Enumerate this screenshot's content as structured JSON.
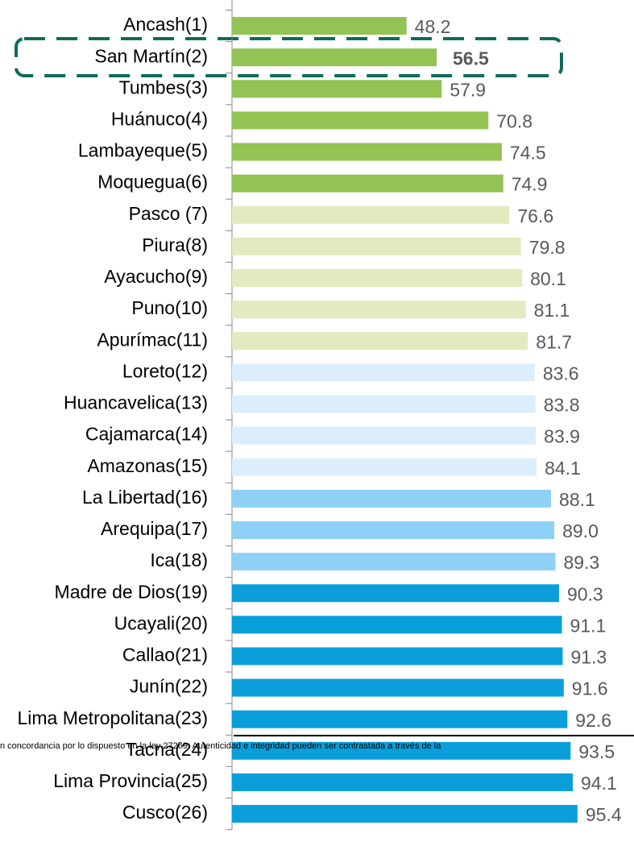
{
  "chart_data": {
    "type": "barh",
    "categories": [
      "Ancash(1)",
      "San Martín(2)",
      "Tumbes(3)",
      "Huánuco(4)",
      "Lambayeque(5)",
      "Moquegua(6)",
      "Pasco (7)",
      "Piura(8)",
      "Ayacucho(9)",
      "Puno(10)",
      "Apurímac(11)",
      "Loreto(12)",
      "Huancavelica(13)",
      "Cajamarca(14)",
      "Amazonas(15)",
      "La Libertad(16)",
      "Arequipa(17)",
      "Ica(18)",
      "Madre de Dios(19)",
      "Ucayali(20)",
      "Callao(21)",
      "Junín(22)",
      "Lima Metropolitana(23)",
      "Tacna(24)",
      "Lima Provincia(25)",
      "Cusco(26)"
    ],
    "values": [
      48.2,
      56.5,
      57.9,
      70.8,
      74.5,
      74.9,
      76.6,
      79.8,
      80.1,
      81.1,
      81.7,
      83.6,
      83.8,
      83.9,
      84.1,
      88.1,
      89.0,
      89.3,
      90.3,
      91.1,
      91.3,
      91.6,
      92.6,
      93.5,
      94.1,
      95.4
    ],
    "value_labels": [
      "48.2",
      "56.5",
      "57.9",
      "70.8",
      "74.5",
      "74.9",
      "76.6",
      "79.8",
      "80.1",
      "81.1",
      "81.7",
      "83.6",
      "83.8",
      "83.9",
      "84.1",
      "88.1",
      "89.0",
      "89.3",
      "90.3",
      "91.1",
      "91.3",
      "91.6",
      "92.6",
      "93.5",
      "94.1",
      "95.4"
    ],
    "colors": [
      "#92c353",
      "#92c353",
      "#92c353",
      "#92c353",
      "#92c353",
      "#92c353",
      "#e2ebbf",
      "#e2ebbf",
      "#e2ebbf",
      "#e2ebbf",
      "#e2ebbf",
      "#ddeefb",
      "#ddeefb",
      "#ddeefb",
      "#ddeefb",
      "#8fd0f5",
      "#8fd0f5",
      "#8fd0f5",
      "#0a9fda",
      "#0a9fda",
      "#0a9fda",
      "#0a9fda",
      "#0a9fda",
      "#0a9fda",
      "#0a9fda",
      "#0a9fda"
    ],
    "highlight_index": 1,
    "xlim": [
      0,
      111
    ],
    "watermark": "n concordancia por lo dispuesto en la ley 27269. Autenticidad e integridad pueden ser contrastada a través de la"
  }
}
